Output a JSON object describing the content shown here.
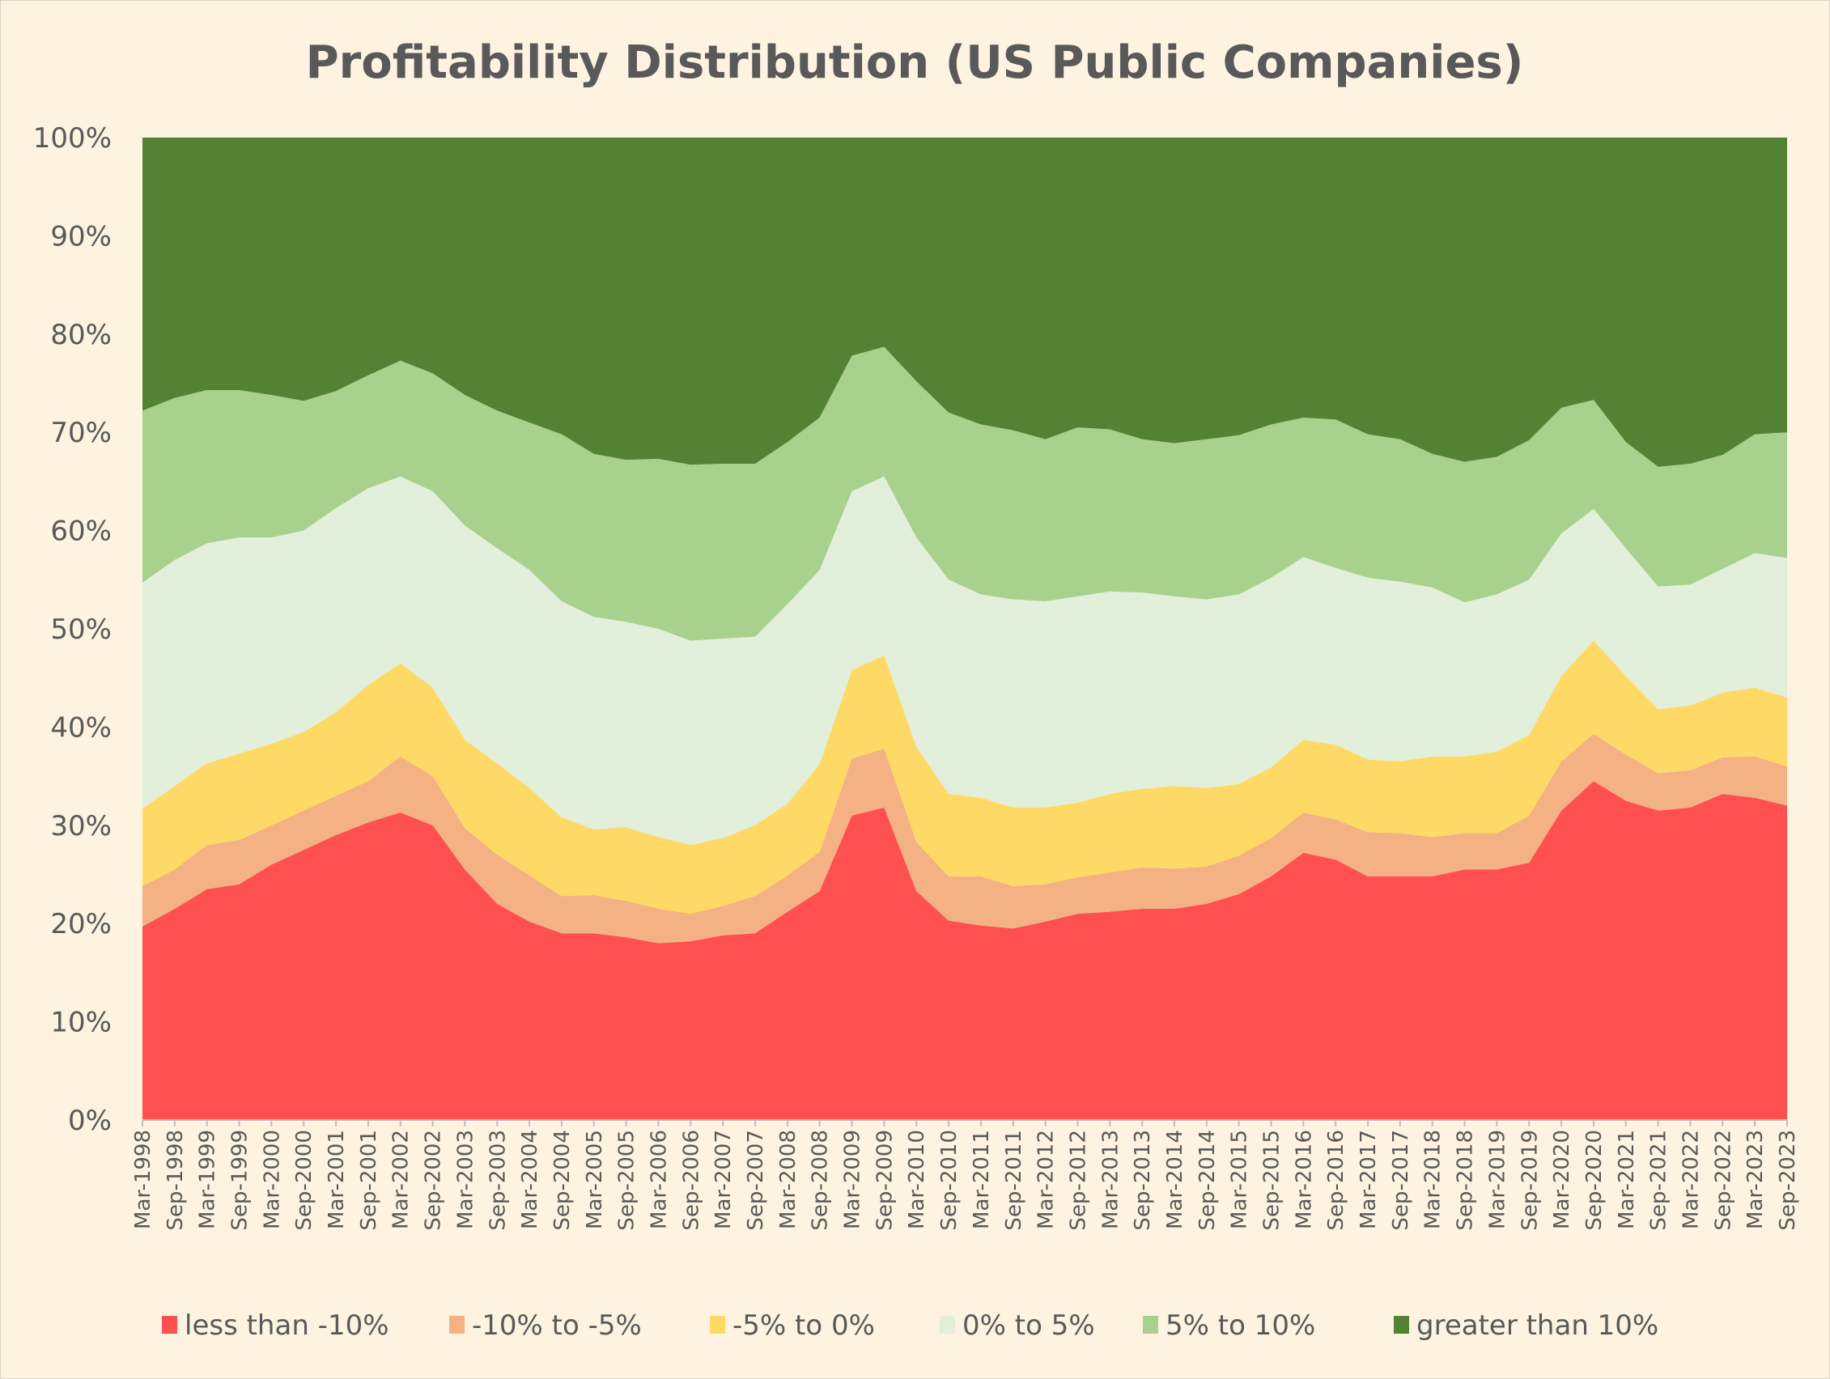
{
  "chart_data": {
    "type": "area",
    "stacked": "percent",
    "title": "Profitability Distribution (US Public Companies)",
    "xlabel": "",
    "ylabel": "",
    "ylim": [
      0,
      100
    ],
    "yticks": [
      "0%",
      "10%",
      "20%",
      "30%",
      "40%",
      "50%",
      "60%",
      "70%",
      "80%",
      "90%",
      "100%"
    ],
    "grid": false,
    "legend": "bottom",
    "categories": [
      "Mar-1998",
      "Sep-1998",
      "Mar-1999",
      "Sep-1999",
      "Mar-2000",
      "Sep-2000",
      "Mar-2001",
      "Sep-2001",
      "Mar-2002",
      "Sep-2002",
      "Mar-2003",
      "Sep-2003",
      "Mar-2004",
      "Sep-2004",
      "Mar-2005",
      "Sep-2005",
      "Mar-2006",
      "Sep-2006",
      "Mar-2007",
      "Sep-2007",
      "Mar-2008",
      "Sep-2008",
      "Mar-2009",
      "Sep-2009",
      "Mar-2010",
      "Sep-2010",
      "Mar-2011",
      "Sep-2011",
      "Mar-2012",
      "Sep-2012",
      "Mar-2013",
      "Sep-2013",
      "Mar-2014",
      "Sep-2014",
      "Mar-2015",
      "Sep-2015",
      "Mar-2016",
      "Sep-2016",
      "Mar-2017",
      "Sep-2017",
      "Mar-2018",
      "Sep-2018",
      "Mar-2019",
      "Sep-2019",
      "Mar-2020",
      "Sep-2020",
      "Mar-2021",
      "Sep-2021",
      "Mar-2022",
      "Sep-2022",
      "Mar-2023",
      "Sep-2023"
    ],
    "series": [
      {
        "name": "less than -10%",
        "color": "#ff5050",
        "values": [
          19.7,
          21.5,
          23.5,
          24.0,
          26.0,
          27.5,
          29.0,
          30.3,
          31.3,
          30.0,
          25.5,
          22.0,
          20.2,
          19.0,
          19.0,
          18.6,
          18.0,
          18.2,
          18.8,
          19.0,
          21.2,
          23.3,
          31.0,
          31.8,
          23.3,
          20.3,
          19.8,
          19.5,
          20.2,
          21.0,
          21.2,
          21.5,
          21.5,
          22.0,
          23.0,
          24.8,
          27.2,
          26.5,
          24.8,
          24.8,
          24.8,
          25.5,
          25.5,
          26.2,
          31.5,
          34.5,
          32.5,
          31.5,
          31.8,
          33.2,
          32.8,
          32.0
        ]
      },
      {
        "name": "-10% to -5%",
        "color": "#f4b183",
        "values": [
          4.1,
          4.0,
          4.5,
          4.5,
          4.0,
          4.0,
          4.0,
          4.2,
          5.7,
          5.0,
          4.2,
          5.0,
          4.7,
          3.8,
          3.9,
          3.7,
          3.5,
          2.8,
          3.0,
          3.8,
          3.7,
          4.0,
          5.8,
          6.0,
          5.0,
          4.5,
          5.0,
          4.3,
          3.8,
          3.7,
          4.0,
          4.2,
          4.1,
          3.8,
          3.9,
          3.9,
          4.1,
          4.1,
          4.5,
          4.4,
          4.0,
          3.7,
          3.7,
          4.8,
          5.0,
          4.8,
          4.7,
          3.8,
          3.8,
          3.7,
          4.2,
          4.0
        ]
      },
      {
        "name": "-5% to 0%",
        "color": "#ffd966",
        "values": [
          7.9,
          8.5,
          8.3,
          8.8,
          8.3,
          8.0,
          8.5,
          9.8,
          9.5,
          9.0,
          9.0,
          9.3,
          8.9,
          8.0,
          6.7,
          7.5,
          7.3,
          7.0,
          6.9,
          7.2,
          7.3,
          8.9,
          9.0,
          9.5,
          9.7,
          8.4,
          8.0,
          8.0,
          7.8,
          7.6,
          8.0,
          8.0,
          8.4,
          8.0,
          7.3,
          7.2,
          7.4,
          7.6,
          7.4,
          7.3,
          8.2,
          7.8,
          8.3,
          8.2,
          8.7,
          9.5,
          8.0,
          6.5,
          6.6,
          6.6,
          7.0,
          7.0
        ]
      },
      {
        "name": "0% to 5%",
        "color": "#e2efda",
        "values": [
          23.0,
          23.0,
          22.4,
          22.0,
          21.0,
          20.5,
          20.8,
          20.0,
          19.0,
          20.0,
          21.8,
          21.9,
          22.2,
          22.0,
          21.6,
          20.9,
          21.2,
          20.8,
          20.3,
          19.2,
          20.3,
          19.8,
          18.2,
          18.2,
          21.3,
          21.8,
          20.7,
          21.2,
          21.0,
          21.0,
          20.6,
          20.0,
          19.3,
          19.2,
          19.3,
          19.3,
          18.6,
          18.0,
          18.5,
          18.3,
          17.2,
          15.7,
          16.0,
          15.8,
          14.5,
          13.4,
          13.0,
          12.5,
          12.3,
          12.6,
          13.7,
          14.2
        ]
      },
      {
        "name": "5% to 10%",
        "color": "#a9d18e",
        "values": [
          17.5,
          16.5,
          15.6,
          15.0,
          14.5,
          13.2,
          11.9,
          11.5,
          11.8,
          12.0,
          13.3,
          14.0,
          15.0,
          17.0,
          16.6,
          16.5,
          17.3,
          17.9,
          17.8,
          17.6,
          16.5,
          15.5,
          13.8,
          13.2,
          15.9,
          17.0,
          17.3,
          17.2,
          16.5,
          17.2,
          16.5,
          15.6,
          15.6,
          16.3,
          16.2,
          15.6,
          14.2,
          15.1,
          14.6,
          14.5,
          13.6,
          14.3,
          14.0,
          14.2,
          12.8,
          11.1,
          10.8,
          12.2,
          12.3,
          11.6,
          12.1,
          12.8
        ]
      },
      {
        "name": "greater than 10%",
        "color": "#548235",
        "values": [
          27.8,
          26.5,
          25.7,
          25.7,
          26.2,
          26.8,
          25.8,
          24.2,
          22.7,
          24.0,
          26.2,
          27.8,
          29.0,
          30.2,
          32.2,
          32.8,
          32.7,
          33.3,
          33.2,
          33.2,
          31.0,
          28.5,
          22.2,
          21.3,
          24.8,
          28.0,
          29.2,
          29.8,
          30.7,
          29.5,
          29.7,
          30.7,
          31.1,
          30.7,
          30.3,
          29.2,
          28.5,
          28.7,
          30.2,
          30.7,
          32.2,
          33.0,
          32.5,
          30.8,
          27.5,
          26.7,
          31.0,
          33.5,
          33.2,
          32.3,
          30.2,
          30.0
        ]
      }
    ]
  },
  "colors": {
    "background": "#fdf3e0",
    "text": "#595959"
  }
}
